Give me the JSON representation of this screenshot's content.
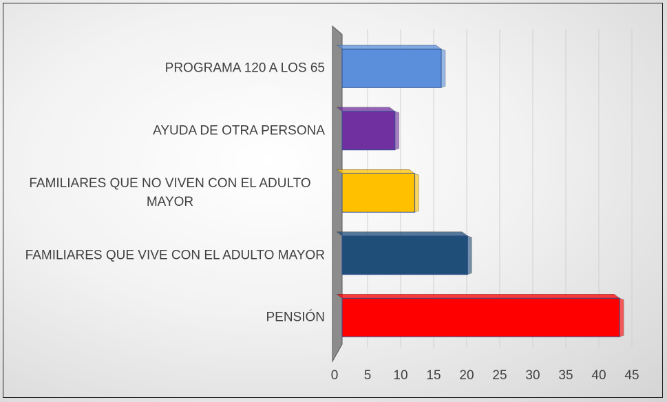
{
  "chart_data": {
    "type": "bar",
    "orientation": "horizontal",
    "categories": [
      "PROGRAMA 120 A LOS 65",
      "AYUDA DE OTRA PERSONA",
      "FAMILIARES QUE NO VIVEN CON EL ADULTO MAYOR",
      "FAMILIARES QUE VIVE CON EL ADULTO MAYOR",
      "PENSIÓN"
    ],
    "values": [
      15,
      8,
      11,
      19,
      42
    ],
    "colors": [
      "#5b8fdc",
      "#7030a0",
      "#ffc000",
      "#1f4e79",
      "#ff0000"
    ],
    "xlim": [
      0,
      45
    ],
    "xticks": [
      0,
      5,
      10,
      15,
      20,
      25,
      30,
      35,
      40,
      45
    ],
    "grid": true
  }
}
